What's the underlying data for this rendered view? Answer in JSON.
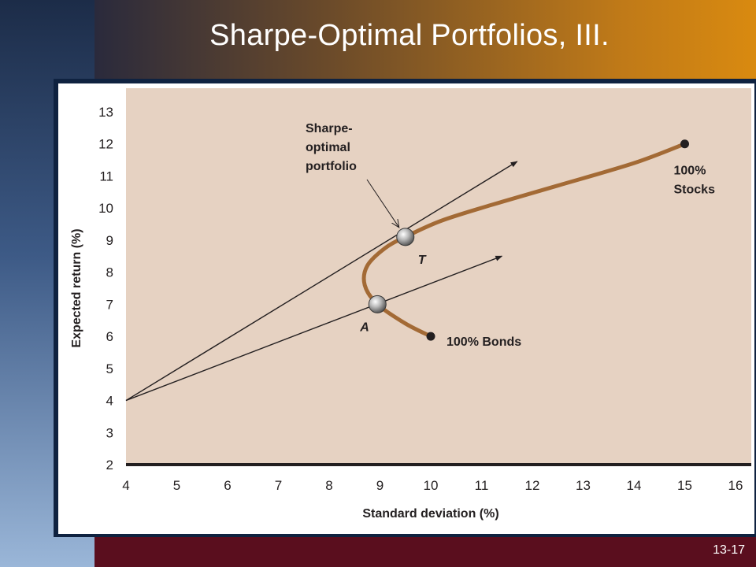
{
  "slide": {
    "title": "Sharpe-Optimal Portfolios, III.",
    "page_number": "13-17"
  },
  "colors": {
    "plot_background": "#e6d2c2",
    "frontier": "#a36a35",
    "lines": "#231f20",
    "title_text": "#ffffff"
  },
  "chart_data": {
    "type": "line",
    "xlabel": "Standard deviation (%)",
    "ylabel": "Expected return (%)",
    "xlim": [
      4,
      16
    ],
    "ylim": [
      2,
      13
    ],
    "x_ticks": [
      4,
      5,
      6,
      7,
      8,
      9,
      10,
      11,
      12,
      13,
      14,
      15,
      16
    ],
    "y_ticks": [
      2,
      3,
      4,
      5,
      6,
      7,
      8,
      9,
      10,
      11,
      12,
      13
    ],
    "grid": false,
    "series": [
      {
        "kind": "frontier",
        "points": [
          [
            10,
            6.0
          ],
          [
            9.5,
            6.4
          ],
          [
            8.95,
            7.0
          ],
          [
            8.7,
            7.6
          ],
          [
            8.75,
            8.2
          ],
          [
            9.1,
            8.75
          ],
          [
            9.5,
            9.1
          ],
          [
            10.2,
            9.6
          ],
          [
            11.2,
            10.1
          ],
          [
            12.5,
            10.7
          ],
          [
            14.0,
            11.4
          ],
          [
            15.0,
            12.0
          ]
        ]
      },
      {
        "kind": "ray",
        "points": [
          [
            4,
            4.0
          ],
          [
            11.7,
            11.45
          ]
        ]
      },
      {
        "kind": "ray",
        "points": [
          [
            4,
            4.0
          ],
          [
            11.4,
            8.5
          ]
        ]
      }
    ],
    "markers": [
      {
        "label": "T",
        "x": 9.5,
        "y": 9.1,
        "style": "sphere"
      },
      {
        "label": "A",
        "x": 8.95,
        "y": 7.0,
        "style": "sphere"
      },
      {
        "label": "100% Stocks",
        "x": 15.0,
        "y": 12.0,
        "style": "dot"
      },
      {
        "label": "100% Bonds",
        "x": 10.0,
        "y": 6.0,
        "style": "dot"
      }
    ],
    "annotations": {
      "sharpe_lines": [
        "Sharpe-",
        "optimal",
        "portfolio"
      ],
      "stocks_lines": [
        "100%",
        "Stocks"
      ],
      "bonds": "100% Bonds",
      "point_t": "T",
      "point_a": "A"
    }
  }
}
